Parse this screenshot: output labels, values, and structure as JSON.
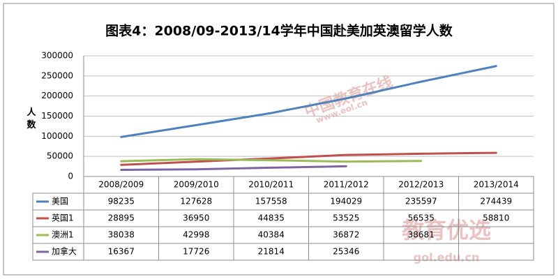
{
  "chart_data": {
    "type": "line",
    "title": "图表4：2008/09-2013/14学年中国赴美加英澳留学人数",
    "y_label": "人数",
    "categories": [
      "2008/2009",
      "2009/2010",
      "2010/2011",
      "2011/2012",
      "2012/2013",
      "2013/2014"
    ],
    "series": [
      {
        "name": "美国",
        "color": "#4f81bd",
        "values": [
          98235,
          127628,
          157558,
          194029,
          235597,
          274439
        ]
      },
      {
        "name": "英国1",
        "color": "#c0504d",
        "values": [
          28895,
          36950,
          44835,
          53525,
          56535,
          58810
        ]
      },
      {
        "name": "澳洲1",
        "color": "#9bbb59",
        "values": [
          38038,
          42998,
          40384,
          36872,
          38681,
          null
        ]
      },
      {
        "name": "加拿大",
        "color": "#8064a2",
        "values": [
          16367,
          17726,
          21814,
          25346,
          null,
          null
        ]
      }
    ],
    "ylim": [
      0,
      300000
    ],
    "yticks": [
      0,
      50000,
      100000,
      150000,
      200000,
      250000,
      300000
    ],
    "grid": true,
    "watermarks": [
      "中国教育在线",
      "www.eol.cn",
      "教育优选",
      "gol.edu.cn"
    ]
  }
}
